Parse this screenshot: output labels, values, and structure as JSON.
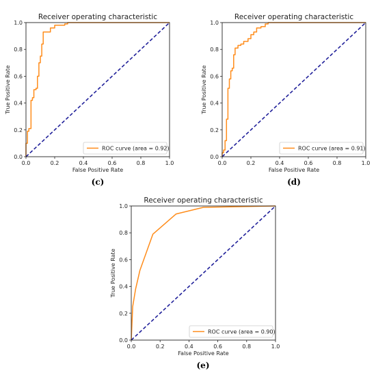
{
  "figure": {
    "captions": [
      "(c)",
      "(d)",
      "(e)"
    ]
  },
  "chart_data": [
    {
      "type": "line",
      "panel": "(c)",
      "title": "Receiver operating characteristic",
      "xlabel": "False Positive Rate",
      "ylabel": "True Positive Rate",
      "xlim": [
        0.0,
        1.0
      ],
      "ylim": [
        0.0,
        1.0
      ],
      "xticks": [
        "0.0",
        "0.2",
        "0.4",
        "0.6",
        "0.8",
        "1.0"
      ],
      "yticks": [
        "0.0",
        "0.2",
        "0.4",
        "0.6",
        "0.8",
        "1.0"
      ],
      "grid": false,
      "legend": "lower-right",
      "series": [
        {
          "name": "ROC curve (area = 0.92)",
          "color": "#ff8c1a",
          "points": [
            [
              0,
              0
            ],
            [
              0,
              0.1
            ],
            [
              0.01,
              0.1
            ],
            [
              0.01,
              0.19
            ],
            [
              0.02,
              0.19
            ],
            [
              0.02,
              0.21
            ],
            [
              0.035,
              0.21
            ],
            [
              0.035,
              0.42
            ],
            [
              0.045,
              0.42
            ],
            [
              0.045,
              0.44
            ],
            [
              0.055,
              0.44
            ],
            [
              0.055,
              0.5
            ],
            [
              0.07,
              0.5
            ],
            [
              0.07,
              0.51
            ],
            [
              0.08,
              0.51
            ],
            [
              0.08,
              0.6
            ],
            [
              0.09,
              0.6
            ],
            [
              0.09,
              0.7
            ],
            [
              0.1,
              0.7
            ],
            [
              0.1,
              0.75
            ],
            [
              0.11,
              0.75
            ],
            [
              0.11,
              0.84
            ],
            [
              0.12,
              0.84
            ],
            [
              0.12,
              0.93
            ],
            [
              0.17,
              0.93
            ],
            [
              0.17,
              0.96
            ],
            [
              0.2,
              0.96
            ],
            [
              0.2,
              0.98
            ],
            [
              0.24,
              0.98
            ],
            [
              0.27,
              0.98
            ],
            [
              0.27,
              0.99
            ],
            [
              0.29,
              0.99
            ],
            [
              0.29,
              1.0
            ],
            [
              1.0,
              1.0
            ]
          ]
        },
        {
          "name": "chance",
          "color": "#1f1f99",
          "dashed": true,
          "points": [
            [
              0,
              0
            ],
            [
              1,
              1
            ]
          ]
        }
      ]
    },
    {
      "type": "line",
      "panel": "(d)",
      "title": "Receiver operating characteristic",
      "xlabel": "False Positive Rate",
      "ylabel": "True Positive Rate",
      "xlim": [
        0.0,
        1.0
      ],
      "ylim": [
        0.0,
        1.0
      ],
      "xticks": [
        "0.0",
        "0.2",
        "0.4",
        "0.6",
        "0.8",
        "1.0"
      ],
      "yticks": [
        "0.0",
        "0.2",
        "0.4",
        "0.6",
        "0.8",
        "1.0"
      ],
      "grid": false,
      "legend": "lower-right",
      "series": [
        {
          "name": "ROC curve (area = 0.91)",
          "color": "#ff8c1a",
          "points": [
            [
              0,
              0
            ],
            [
              0,
              0.03
            ],
            [
              0.01,
              0.03
            ],
            [
              0.01,
              0.05
            ],
            [
              0.02,
              0.05
            ],
            [
              0.02,
              0.12
            ],
            [
              0.03,
              0.12
            ],
            [
              0.03,
              0.28
            ],
            [
              0.04,
              0.28
            ],
            [
              0.04,
              0.51
            ],
            [
              0.05,
              0.51
            ],
            [
              0.05,
              0.58
            ],
            [
              0.06,
              0.58
            ],
            [
              0.06,
              0.64
            ],
            [
              0.07,
              0.64
            ],
            [
              0.07,
              0.66
            ],
            [
              0.08,
              0.66
            ],
            [
              0.08,
              0.76
            ],
            [
              0.09,
              0.76
            ],
            [
              0.09,
              0.81
            ],
            [
              0.11,
              0.81
            ],
            [
              0.11,
              0.83
            ],
            [
              0.13,
              0.83
            ],
            [
              0.13,
              0.84
            ],
            [
              0.15,
              0.84
            ],
            [
              0.15,
              0.86
            ],
            [
              0.18,
              0.86
            ],
            [
              0.18,
              0.88
            ],
            [
              0.2,
              0.88
            ],
            [
              0.2,
              0.91
            ],
            [
              0.22,
              0.91
            ],
            [
              0.22,
              0.93
            ],
            [
              0.24,
              0.93
            ],
            [
              0.24,
              0.96
            ],
            [
              0.27,
              0.96
            ],
            [
              0.27,
              0.97
            ],
            [
              0.3,
              0.97
            ],
            [
              0.3,
              0.99
            ],
            [
              0.32,
              0.99
            ],
            [
              0.32,
              1.0
            ],
            [
              1.0,
              1.0
            ]
          ]
        },
        {
          "name": "chance",
          "color": "#1f1f99",
          "dashed": true,
          "points": [
            [
              0,
              0
            ],
            [
              1,
              1
            ]
          ]
        }
      ]
    },
    {
      "type": "line",
      "panel": "(e)",
      "title": "Receiver operating characteristic",
      "xlabel": "False Positive Rate",
      "ylabel": "True Positive Rate",
      "xlim": [
        0.0,
        1.0
      ],
      "ylim": [
        0.0,
        1.0
      ],
      "xticks": [
        "0.0",
        "0.2",
        "0.4",
        "0.6",
        "0.8",
        "1.0"
      ],
      "yticks": [
        "0.0",
        "0.2",
        "0.4",
        "0.6",
        "0.8",
        "1.0"
      ],
      "grid": false,
      "legend": "lower-right",
      "series": [
        {
          "name": "ROC curve (area = 0.90)",
          "color": "#ff8c1a",
          "points": [
            [
              0,
              0
            ],
            [
              0.01,
              0.25
            ],
            [
              0.03,
              0.38
            ],
            [
              0.06,
              0.52
            ],
            [
              0.15,
              0.79
            ],
            [
              0.31,
              0.94
            ],
            [
              0.5,
              0.99
            ],
            [
              1.0,
              1.0
            ]
          ]
        },
        {
          "name": "chance",
          "color": "#1f1f99",
          "dashed": true,
          "points": [
            [
              0,
              0
            ],
            [
              1,
              1
            ]
          ]
        }
      ]
    }
  ]
}
